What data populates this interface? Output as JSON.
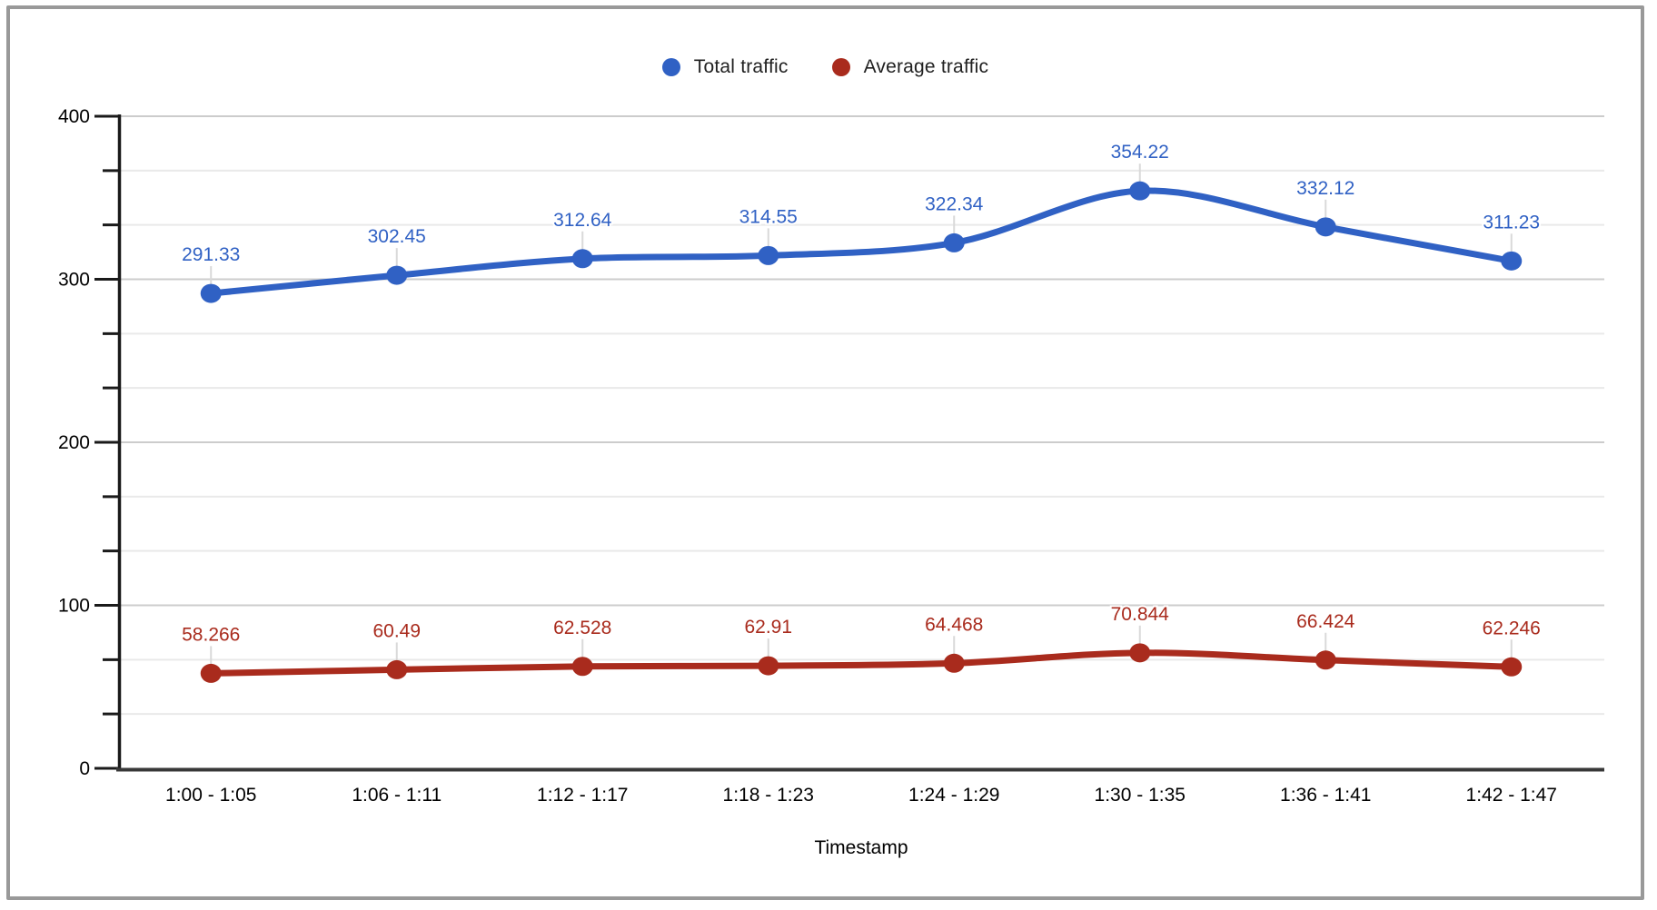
{
  "colors": {
    "series_blue": "#3061C4",
    "series_red": "#A92B1D",
    "gridline_minor": "#e9e9e9",
    "gridline_major": "#cccccc",
    "axis_line": "#1a1a1a",
    "baseline": "#383838",
    "label_stub": "#d9d9d9",
    "frame_border": "#999999"
  },
  "chart_data": {
    "type": "line",
    "title": "",
    "xlabel": "Timestamp",
    "ylabel": "",
    "ylim": [
      0,
      400
    ],
    "y_major_ticks": [
      0,
      100,
      200,
      300,
      400
    ],
    "y_minor_step": 33.333333,
    "grid": true,
    "line_smoothing": true,
    "point_labels_shown": true,
    "legend_position": "top-center",
    "categories": [
      "1:00 - 1:05",
      "1:06 - 1:11",
      "1:12 - 1:17",
      "1:18 - 1:23",
      "1:24 - 1:29",
      "1:30 - 1:35",
      "1:36 - 1:41",
      "1:42 - 1:47"
    ],
    "series": [
      {
        "name": "Total traffic",
        "color": "#3061C4",
        "values": [
          291.33,
          302.45,
          312.64,
          314.55,
          322.34,
          354.22,
          332.12,
          311.23
        ]
      },
      {
        "name": "Average traffic",
        "color": "#A92B1D",
        "values": [
          58.266,
          60.49,
          62.528,
          62.91,
          64.468,
          70.844,
          66.424,
          62.246
        ]
      }
    ]
  }
}
